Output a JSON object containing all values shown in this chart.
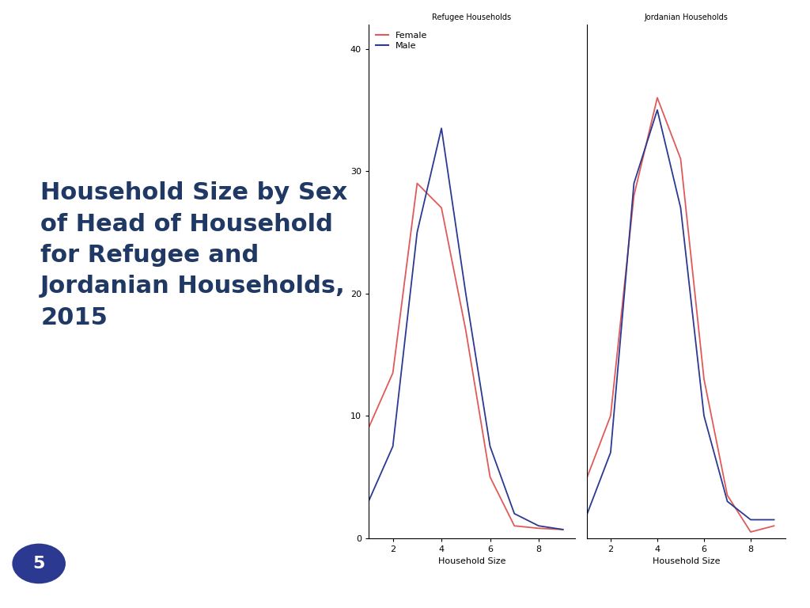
{
  "title_text": "Household Size by Sex\nof Head of Household\nfor Refugee and\nJordanian Households,\n2015",
  "title_color": "#1F3864",
  "background_color": "#ffffff",
  "panel_bg": "#ffffff",
  "refugee_title": "Refugee Households",
  "jordanian_title": "Jordanian Households",
  "xlabel": "Household Size",
  "female_color": "#e05a5a",
  "male_color": "#2B3990",
  "legend_female": "Female",
  "legend_male": "Male",
  "refugee_female_x": [
    1,
    2,
    3,
    4,
    5,
    6,
    7,
    8,
    9
  ],
  "refugee_female_y": [
    9.0,
    13.5,
    29.0,
    27.0,
    17.0,
    5.0,
    1.0,
    0.8,
    0.7
  ],
  "refugee_male_x": [
    1,
    2,
    3,
    4,
    5,
    6,
    7,
    8,
    9
  ],
  "refugee_male_y": [
    3.0,
    7.5,
    25.0,
    33.5,
    20.0,
    7.5,
    2.0,
    1.0,
    0.7
  ],
  "jordanian_female_x": [
    1,
    2,
    3,
    4,
    5,
    6,
    7,
    8,
    9
  ],
  "jordanian_female_y": [
    5.0,
    10.0,
    28.0,
    36.0,
    31.0,
    13.0,
    3.5,
    0.5,
    1.0
  ],
  "jordanian_male_x": [
    1,
    2,
    3,
    4,
    5,
    6,
    7,
    8,
    9
  ],
  "jordanian_male_y": [
    2.0,
    7.0,
    29.0,
    35.0,
    27.0,
    10.0,
    3.0,
    1.5,
    1.5
  ],
  "ylim": [
    0,
    42
  ],
  "xlim": [
    1,
    9.5
  ],
  "yticks": [
    0,
    10,
    20,
    30,
    40
  ],
  "xticks": [
    2,
    4,
    6,
    8
  ],
  "page_number": "5",
  "page_circle_color": "#2B3990",
  "page_text_color": "#ffffff",
  "border_color": "#cccccc",
  "title_fontsize": 22,
  "axis_title_fontsize": 7,
  "tick_fontsize": 8,
  "xlabel_fontsize": 8
}
